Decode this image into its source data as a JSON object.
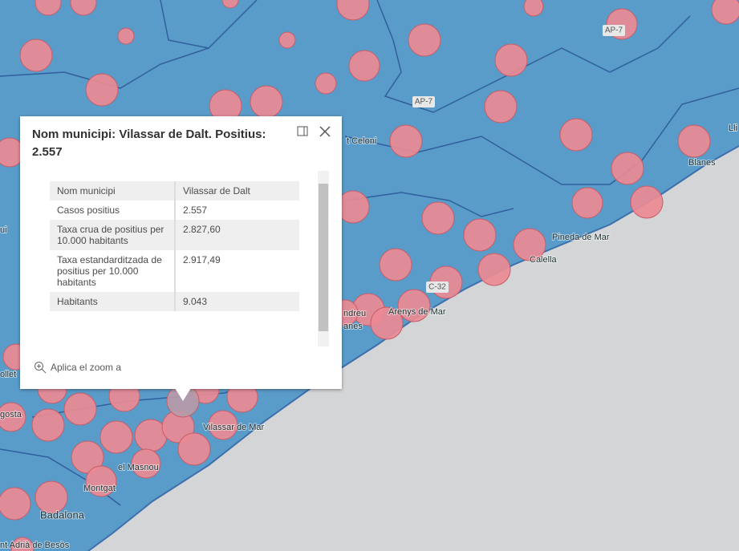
{
  "popup": {
    "title": "Nom municipi: Vilassar de Dalt. Positius: 2.557",
    "table": {
      "rows": [
        [
          "Nom municipi",
          "Vilassar de Dalt"
        ],
        [
          "Casos positius",
          "2.557"
        ],
        [
          "Taxa crua de positius per 10.000 habitants",
          "2.827,60"
        ],
        [
          "Taxa estandarditzada de positius per 10.000 habitants",
          "2.917,49"
        ],
        [
          "Habitants",
          "9.043"
        ]
      ]
    },
    "zoom_action": "Aplica el zoom a"
  },
  "map": {
    "labels": [
      "AP-7",
      "AP-7",
      "C-32",
      "t Celoni",
      "Blanes",
      "Pineda de Mar",
      "Calella",
      "Arenys de Mar",
      "Vilassar de Mar",
      "el Masnou",
      "Montgat",
      "Badalona",
      "nt Adrià de Besòs",
      "gosta",
      "ollet",
      "Lli",
      "ui",
      "anes",
      "ndreu"
    ]
  }
}
